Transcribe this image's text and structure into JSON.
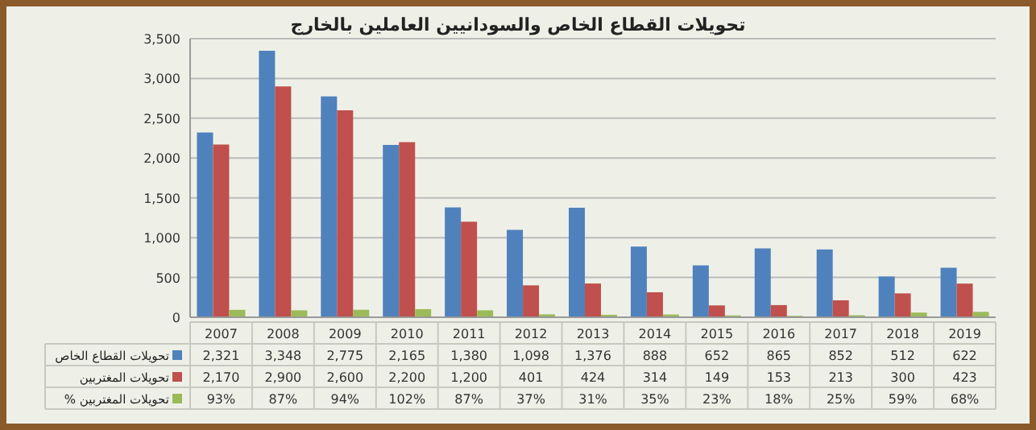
{
  "chart_data": {
    "type": "bar",
    "title": "تحويلات القطاع الخاص والسودانيين العاملين بالخارج",
    "categories": [
      "2007",
      "2008",
      "2009",
      "2010",
      "2011",
      "2012",
      "2013",
      "2014",
      "2015",
      "2016",
      "2017",
      "2018",
      "2019"
    ],
    "series": [
      {
        "name": "تحويلات القطاع الخاص",
        "color": "#4f81bd",
        "values": [
          2321,
          3348,
          2775,
          2165,
          1380,
          1098,
          1376,
          888,
          652,
          865,
          852,
          512,
          622
        ],
        "value_labels": [
          "2,321",
          "3,348",
          "2,775",
          "2,165",
          "1,380",
          "1,098",
          "1,376",
          "888",
          "652",
          "865",
          "852",
          "512",
          "622"
        ]
      },
      {
        "name": "تحويلات المغتربين",
        "color": "#c0504d",
        "values": [
          2170,
          2900,
          2600,
          2200,
          1200,
          401,
          424,
          314,
          149,
          153,
          213,
          300,
          423
        ],
        "value_labels": [
          "2,170",
          "2,900",
          "2,600",
          "2,200",
          "1,200",
          "401",
          "424",
          "314",
          "149",
          "153",
          "213",
          "300",
          "423"
        ]
      },
      {
        "name": "% تحويلات المغتربين",
        "color": "#9bbb59",
        "values": [
          93,
          87,
          94,
          102,
          87,
          37,
          31,
          35,
          23,
          18,
          25,
          59,
          68
        ],
        "value_labels": [
          "93%",
          "87%",
          "94%",
          "102%",
          "87%",
          "37%",
          "31%",
          "35%",
          "23%",
          "18%",
          "25%",
          "59%",
          "68%"
        ]
      }
    ],
    "ylim": [
      0,
      3500
    ],
    "yticks": [
      {
        "value": 0,
        "label": "0"
      },
      {
        "value": 500,
        "label": "500"
      },
      {
        "value": 1000,
        "label": "1,000"
      },
      {
        "value": 1500,
        "label": "1,500"
      },
      {
        "value": 2000,
        "label": "2,000"
      },
      {
        "value": 2500,
        "label": "2,500"
      },
      {
        "value": 3000,
        "label": "3,000"
      },
      {
        "value": 3500,
        "label": "3,500"
      }
    ],
    "grid": "y",
    "legend": "bottom"
  }
}
